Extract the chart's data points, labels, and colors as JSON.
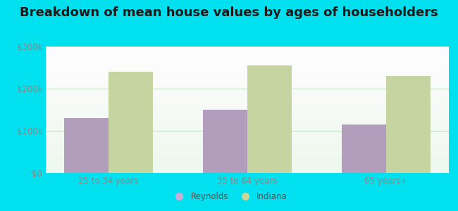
{
  "title": "Breakdown of mean house values by ages of householders",
  "categories": [
    "25 to 34 years",
    "35 to 64 years",
    "65 years+"
  ],
  "reynolds_values": [
    130000,
    150000,
    115000
  ],
  "indiana_values": [
    240000,
    255000,
    230000
  ],
  "reynolds_color": "#b39dbd",
  "indiana_color": "#c5d4a0",
  "bar_width": 0.32,
  "ylim": [
    0,
    300000
  ],
  "yticks": [
    0,
    100000,
    200000,
    300000
  ],
  "ytick_labels": [
    "$0",
    "$100k",
    "$200k",
    "$300k"
  ],
  "background_outer": "#00e0ef",
  "grid_color": "#c8dfc8",
  "title_fontsize": 13,
  "legend_labels": [
    "Reynolds",
    "Indiana"
  ],
  "legend_marker_colors": [
    "#c9aed6",
    "#c8d89a"
  ],
  "tick_color": "#888888",
  "tick_fontsize": 8.5
}
